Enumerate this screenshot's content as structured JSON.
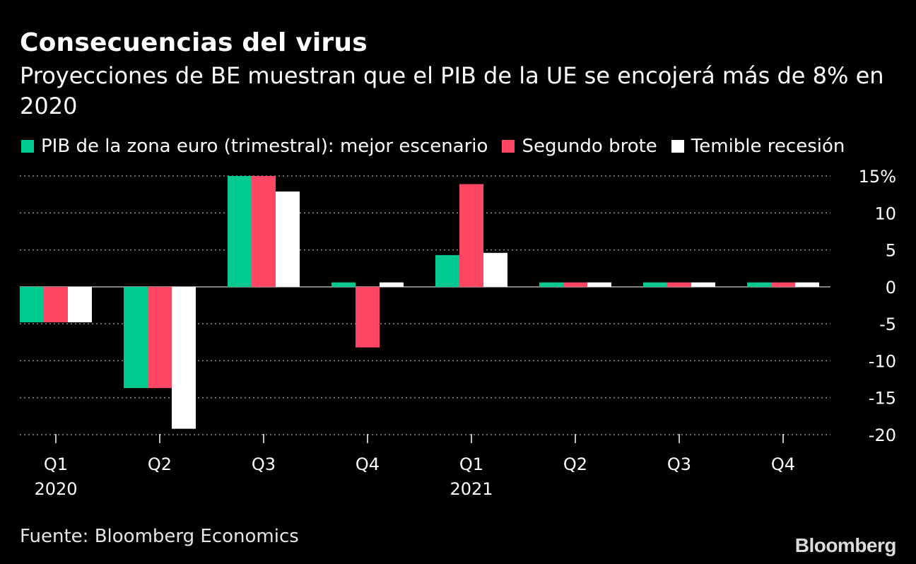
{
  "title": "Consecuencias del virus",
  "subtitle": "Proyecciones de BE muestran que el PIB de la UE se encojerá más de 8% en 2020",
  "source": "Fuente: Bloomberg Economics",
  "brand": "Bloomberg",
  "colors": {
    "background": "#000000",
    "series": [
      "#00c98f",
      "#ff4664",
      "#ffffff"
    ],
    "gridline": "#8a8a8a",
    "zero_line": "#aaaaaa"
  },
  "chart_data": {
    "type": "bar",
    "categories": [
      "Q1",
      "Q2",
      "Q3",
      "Q4",
      "Q1",
      "Q2",
      "Q3",
      "Q4"
    ],
    "category_sublabels": [
      "2020",
      "",
      "",
      "",
      "2021",
      "",
      "",
      ""
    ],
    "series": [
      {
        "name": "PIB de la zona euro (trimestral): mejor escenario",
        "values": [
          -4.8,
          -13.7,
          15,
          0.6,
          4.3,
          0.6,
          0.6,
          0.6
        ]
      },
      {
        "name": "Segundo brote",
        "values": [
          -4.8,
          -13.7,
          15,
          -8.2,
          13.9,
          0.6,
          0.6,
          0.6
        ]
      },
      {
        "name": "Temible recesión",
        "values": [
          -4.8,
          -19.2,
          12.9,
          0.6,
          4.6,
          0.6,
          0.6,
          0.6
        ]
      }
    ],
    "yticks": [
      {
        "value": 15,
        "label": "15%"
      },
      {
        "value": 10,
        "label": "10"
      },
      {
        "value": 5,
        "label": "5"
      },
      {
        "value": 0,
        "label": "0"
      },
      {
        "value": -5,
        "label": "-5"
      },
      {
        "value": -10,
        "label": "-10"
      },
      {
        "value": -15,
        "label": "-15"
      },
      {
        "value": -20,
        "label": "-20"
      }
    ],
    "ylim": [
      -20,
      15
    ],
    "grid": true,
    "legend_position": "top"
  }
}
